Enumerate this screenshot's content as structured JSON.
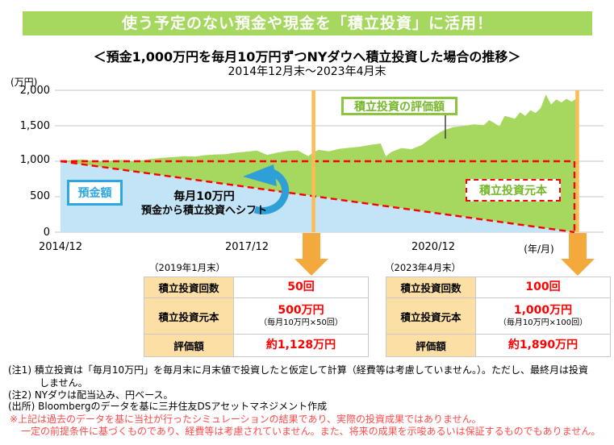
{
  "banner": {
    "text": "使う予定のない預金や現金を「積立投資」に活用！"
  },
  "chart": {
    "title": "＜預金1,000万円を毎月10万円ずつNYダウへ積立投資した場合の推移＞",
    "subtitle": "2014年12月末～2023年4月末",
    "y_unit": "(万円)",
    "x_unit": "(年/月)",
    "y_tick_labels": [
      "2,000",
      "1,500",
      "1,000",
      "500",
      "0"
    ],
    "x_tick_labels": [
      "2014/12",
      "2017/12",
      "2020/12"
    ],
    "area_labels": {
      "deposit": "預金額",
      "valuation": "積立投資の評価額",
      "principal": "積立投資元本"
    },
    "shift_note": {
      "line1": "毎月10万円",
      "line2": "預金から積立投資へシフト"
    }
  },
  "chart_data": {
    "type": "area",
    "title": "＜預金1,000万円を毎月10万円ずつNYダウへ積立投資した場合の推移＞",
    "subtitle": "2014年12月末～2023年4月末",
    "ylabel": "万円",
    "ylim": [
      0,
      2000
    ],
    "y_ticks": [
      0,
      500,
      1000,
      1500,
      2000
    ],
    "x_start": "2014/12",
    "x_end": "2023/4",
    "x_tick_months": [
      0,
      36,
      72
    ],
    "months_from_start": [
      0,
      2,
      4,
      6,
      8,
      10,
      12,
      14,
      16,
      18,
      20,
      22,
      24,
      26,
      28,
      30,
      32,
      34,
      36,
      38,
      40,
      42,
      44,
      46,
      48,
      49,
      50,
      52,
      54,
      56,
      58,
      60,
      62,
      63,
      64,
      66,
      68,
      70,
      72,
      74,
      76,
      78,
      80,
      82,
      83,
      84,
      85,
      86,
      88,
      89,
      90,
      91,
      92,
      93,
      94,
      95,
      96,
      97,
      98,
      99,
      100
    ],
    "series": [
      {
        "name": "預金額",
        "color": "#C3E4F6",
        "values": [
          1000,
          980,
          960,
          940,
          920,
          900,
          880,
          860,
          840,
          820,
          800,
          780,
          760,
          740,
          720,
          700,
          680,
          660,
          640,
          620,
          600,
          580,
          560,
          540,
          520,
          510,
          500,
          480,
          460,
          440,
          420,
          400,
          380,
          370,
          360,
          340,
          320,
          300,
          280,
          260,
          240,
          220,
          200,
          180,
          170,
          160,
          150,
          140,
          120,
          110,
          100,
          90,
          80,
          70,
          60,
          50,
          40,
          30,
          20,
          10,
          0
        ]
      },
      {
        "name": "預金額＋積立投資の評価額",
        "color": "#A6D75F",
        "values": [
          1000,
          1015,
          1025,
          1010,
          995,
          1010,
          1020,
          1000,
          1015,
          1035,
          1050,
          1060,
          1070,
          1065,
          1085,
          1095,
          1100,
          1120,
          1135,
          1150,
          1090,
          1120,
          1145,
          1150,
          1070,
          1128,
          1160,
          1140,
          1175,
          1190,
          1205,
          1230,
          1250,
          1065,
          1130,
          1185,
          1170,
          1230,
          1340,
          1430,
          1480,
          1495,
          1520,
          1510,
          1580,
          1540,
          1490,
          1640,
          1600,
          1690,
          1640,
          1720,
          1680,
          1750,
          1940,
          1800,
          1870,
          1830,
          1880,
          1840,
          1890
        ]
      }
    ],
    "principal_overlay": {
      "style": "red-dashed-triangle",
      "top_value": 1000,
      "note": "積立投資元本：1,000万円の水平線と逓減する預金額線・右端縦線で囲む"
    },
    "markers": [
      {
        "month": 49,
        "label": "（2019年1月末）"
      },
      {
        "month": 100,
        "label": "（2023年4月末）"
      }
    ],
    "legend_position": "on-chart-labels",
    "grid": true
  },
  "panels": [
    {
      "caption": "（2019年1月末）",
      "rows": [
        {
          "label": "積立投資回数",
          "value": "50回",
          "note": ""
        },
        {
          "label": "積立投資元本",
          "value": "500万円",
          "note": "（毎月10万円×50回）"
        },
        {
          "label": "評価額",
          "value": "約1,128万円",
          "note": ""
        }
      ]
    },
    {
      "caption": "（2023年4月末）",
      "rows": [
        {
          "label": "積立投資回数",
          "value": "100回",
          "note": ""
        },
        {
          "label": "積立投資元本",
          "value": "1,000万円",
          "note": "（毎月10万円×100回）"
        },
        {
          "label": "評価額",
          "value": "約1,890万円",
          "note": ""
        }
      ]
    }
  ],
  "footnotes": [
    "(注1) 積立投資は「毎月10万円」を毎月末に月末値で投資したと仮定して計算（経費等は考慮していません。）。ただし、最終月は投資",
    "しません。",
    "(注2) NYダウは配当込み、円ベース。",
    "(出所) Bloombergのデータを基に三井住友DSアセットマネジメント作成"
  ],
  "disclaimer": [
    "※上記は過去のデータを基に当社が行ったシミュレーションの結果であり、実際の投資成果ではありません。",
    "一定の前提条件に基づくものであり、経費等は考慮されていません。また、将来の成果を示唆あるいは保証するものでもありません。"
  ],
  "colors": {
    "banner_green": "#A6D75F",
    "area_green": "#A6D75F",
    "area_blue": "#C3E4F6",
    "label_green_text": "#76B82B",
    "label_green_border": "#8CC63F",
    "label_blue": "#2EA7E0",
    "dashed_red": "#FF0000",
    "marker_orange_line": "#FBBC55",
    "arrow_orange": "#F4A93C",
    "shift_arrow_blue": "#2F9FD8",
    "table_header_bg": "#FBDFA4",
    "table_value_red": "#FF0000",
    "disclaimer_red": "#FF4A4A"
  }
}
